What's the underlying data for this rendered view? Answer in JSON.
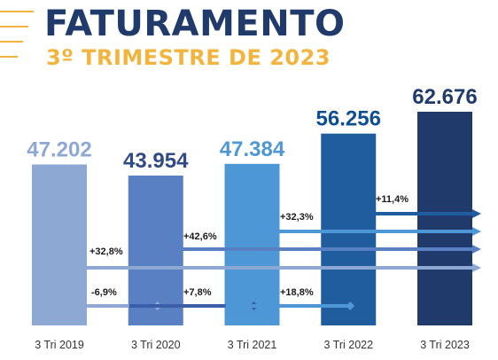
{
  "header": {
    "title": "FATURAMENTO",
    "subtitle": "3º TRIMESTRE DE 2023"
  },
  "colors": {
    "title": "#1f3a6b",
    "subtitle": "#f2b43c",
    "decoration": "#f2b43c"
  },
  "chart_data": {
    "type": "bar",
    "title": "FATURAMENTO",
    "subtitle": "3º TRIMESTRE DE 2023",
    "xlabel": "",
    "ylabel": "",
    "categories": [
      "3 Tri 2019",
      "3 Tri 2020",
      "3 Tri 2021",
      "3 Tri 2022",
      "3 Tri 2023"
    ],
    "values": [
      47202,
      43954,
      47384,
      56256,
      62676
    ],
    "value_labels": [
      "47.202",
      "43.954",
      "47.384",
      "56.256",
      "62.676"
    ],
    "bar_colors": [
      "#8ea8d4",
      "#5a80c4",
      "#4d97d6",
      "#1f5d9e",
      "#1f3a6b"
    ],
    "label_colors": [
      "#8ea8d4",
      "#2f4a86",
      "#4d97d6",
      "#0f4f8f",
      "#1f3a6b"
    ],
    "grid": false,
    "legend": "none",
    "growth_annotations": [
      {
        "from": "3 Tri 2019",
        "to": "3 Tri 2020",
        "label": "-6,9%",
        "color": "#8ea8d4"
      },
      {
        "from": "3 Tri 2020",
        "to": "3 Tri 2021",
        "label": "+7,8%",
        "color": "#3a5fa8"
      },
      {
        "from": "3 Tri 2021",
        "to": "3 Tri 2022",
        "label": "+18,8%",
        "color": "#4d97d6"
      },
      {
        "from": "3 Tri 2019",
        "to": "3 Tri 2023",
        "label": "+32,8%",
        "color": "#8ea8d4"
      },
      {
        "from": "3 Tri 2020",
        "to": "3 Tri 2023",
        "label": "+42,6%",
        "color": "#5a80c4"
      },
      {
        "from": "3 Tri 2021",
        "to": "3 Tri 2023",
        "label": "+32,3%",
        "color": "#4d97d6"
      },
      {
        "from": "3 Tri 2022",
        "to": "3 Tri 2023",
        "label": "+11,4%",
        "color": "#1f5d9e"
      }
    ]
  }
}
